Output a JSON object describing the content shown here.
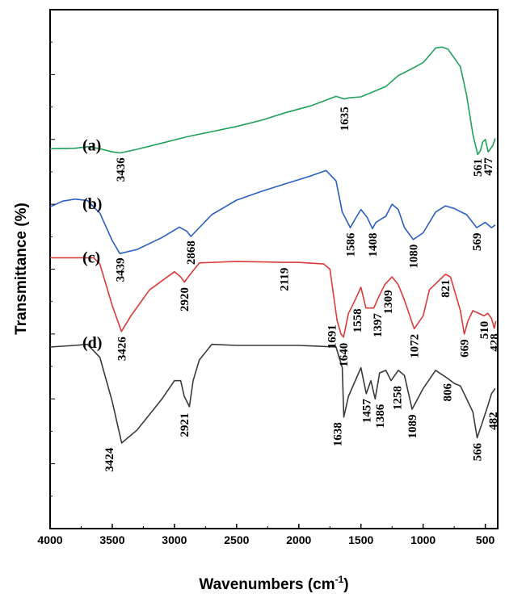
{
  "chart_data": {
    "type": "line",
    "title": "",
    "xlabel": "Wavenumbers (cm",
    "xlabel_sup": "-1",
    "xlabel_close": ")",
    "ylabel": "Transmittance (%)",
    "xlim": [
      4000,
      400
    ],
    "x_reversed": true,
    "x_ticks": [
      "4000",
      "3500",
      "3000",
      "2500",
      "2000",
      "1500",
      "1000",
      "500"
    ],
    "ylim": [
      0,
      100
    ],
    "grid": false,
    "series": [
      {
        "name": "(a)",
        "color": "#1fa15a",
        "points": [
          [
            4000,
            73.2
          ],
          [
            3800,
            73.3
          ],
          [
            3700,
            73.6
          ],
          [
            3600,
            73.2
          ],
          [
            3500,
            72.6
          ],
          [
            3436,
            72.4
          ],
          [
            3300,
            73.1
          ],
          [
            3100,
            74.3
          ],
          [
            2900,
            75.5
          ],
          [
            2700,
            76.5
          ],
          [
            2500,
            77.5
          ],
          [
            2300,
            78.7
          ],
          [
            2100,
            80.2
          ],
          [
            1900,
            81.5
          ],
          [
            1700,
            83.3
          ],
          [
            1635,
            82.8
          ],
          [
            1600,
            83.0
          ],
          [
            1500,
            83.2
          ],
          [
            1400,
            84.2
          ],
          [
            1300,
            85.2
          ],
          [
            1200,
            87.3
          ],
          [
            1100,
            88.5
          ],
          [
            1000,
            89.8
          ],
          [
            900,
            92.6
          ],
          [
            850,
            92.8
          ],
          [
            800,
            92.4
          ],
          [
            700,
            89.0
          ],
          [
            650,
            83.5
          ],
          [
            600,
            76.0
          ],
          [
            561,
            72.1
          ],
          [
            540,
            72.8
          ],
          [
            520,
            74.5
          ],
          [
            500,
            75.0
          ],
          [
            477,
            72.6
          ],
          [
            440,
            73.8
          ],
          [
            420,
            75.2
          ]
        ]
      },
      {
        "name": "(b)",
        "color": "#2a5fc1",
        "points": [
          [
            4000,
            62.0
          ],
          [
            3900,
            63.1
          ],
          [
            3800,
            63.5
          ],
          [
            3700,
            63.2
          ],
          [
            3600,
            60.8
          ],
          [
            3500,
            55.5
          ],
          [
            3439,
            53.0
          ],
          [
            3300,
            53.8
          ],
          [
            3100,
            56.1
          ],
          [
            2960,
            58.1
          ],
          [
            2900,
            57.3
          ],
          [
            2868,
            56.3
          ],
          [
            2700,
            60.5
          ],
          [
            2500,
            63.3
          ],
          [
            2300,
            65.0
          ],
          [
            2100,
            66.5
          ],
          [
            1900,
            68.0
          ],
          [
            1780,
            69.0
          ],
          [
            1700,
            67.0
          ],
          [
            1650,
            61.0
          ],
          [
            1586,
            58.0
          ],
          [
            1550,
            59.5
          ],
          [
            1500,
            61.5
          ],
          [
            1450,
            60.0
          ],
          [
            1408,
            57.8
          ],
          [
            1380,
            59.0
          ],
          [
            1300,
            60.2
          ],
          [
            1250,
            62.5
          ],
          [
            1200,
            61.5
          ],
          [
            1150,
            58.0
          ],
          [
            1080,
            55.7
          ],
          [
            1000,
            57.0
          ],
          [
            900,
            61.0
          ],
          [
            820,
            62.2
          ],
          [
            750,
            61.7
          ],
          [
            650,
            60.5
          ],
          [
            569,
            58.0
          ],
          [
            500,
            59.0
          ],
          [
            450,
            58.0
          ],
          [
            420,
            58.5
          ]
        ]
      },
      {
        "name": "(c)",
        "color": "#d93a3a",
        "points": [
          [
            4000,
            52.2
          ],
          [
            3700,
            52.2
          ],
          [
            3650,
            52.2
          ],
          [
            3600,
            51.0
          ],
          [
            3500,
            43.0
          ],
          [
            3426,
            38.0
          ],
          [
            3350,
            41.0
          ],
          [
            3200,
            46.0
          ],
          [
            3000,
            49.5
          ],
          [
            2950,
            48.5
          ],
          [
            2920,
            47.5
          ],
          [
            2880,
            48.8
          ],
          [
            2800,
            51.2
          ],
          [
            2500,
            51.5
          ],
          [
            2119,
            51.3
          ],
          [
            2000,
            51.3
          ],
          [
            1800,
            51.0
          ],
          [
            1750,
            50.0
          ],
          [
            1691,
            40.0
          ],
          [
            1660,
            37.5
          ],
          [
            1640,
            36.9
          ],
          [
            1600,
            41.5
          ],
          [
            1558,
            43.5
          ],
          [
            1500,
            46.5
          ],
          [
            1460,
            42.5
          ],
          [
            1397,
            42.5
          ],
          [
            1350,
            45.0
          ],
          [
            1309,
            47.0
          ],
          [
            1250,
            48.5
          ],
          [
            1200,
            47.0
          ],
          [
            1150,
            44.0
          ],
          [
            1100,
            40.5
          ],
          [
            1072,
            38.5
          ],
          [
            1000,
            41.0
          ],
          [
            950,
            46.0
          ],
          [
            821,
            49.0
          ],
          [
            780,
            48.5
          ],
          [
            700,
            42.0
          ],
          [
            669,
            37.5
          ],
          [
            640,
            40.0
          ],
          [
            600,
            42.0
          ],
          [
            510,
            41.0
          ],
          [
            480,
            41.5
          ],
          [
            450,
            40.5
          ],
          [
            428,
            38.6
          ],
          [
            415,
            40.0
          ]
        ]
      },
      {
        "name": "(d)",
        "color": "#3a3a3a",
        "points": [
          [
            4000,
            35.0
          ],
          [
            3800,
            35.3
          ],
          [
            3700,
            35.5
          ],
          [
            3600,
            33.0
          ],
          [
            3500,
            24.5
          ],
          [
            3424,
            16.5
          ],
          [
            3300,
            19.0
          ],
          [
            3100,
            25.0
          ],
          [
            3000,
            28.5
          ],
          [
            2950,
            28.5
          ],
          [
            2921,
            25.5
          ],
          [
            2880,
            23.5
          ],
          [
            2850,
            28.5
          ],
          [
            2800,
            32.5
          ],
          [
            2700,
            35.5
          ],
          [
            2500,
            35.3
          ],
          [
            2000,
            35.3
          ],
          [
            1700,
            35.0
          ],
          [
            1650,
            31.0
          ],
          [
            1638,
            21.5
          ],
          [
            1600,
            25.5
          ],
          [
            1500,
            31.0
          ],
          [
            1457,
            26.0
          ],
          [
            1420,
            28.5
          ],
          [
            1386,
            25.0
          ],
          [
            1350,
            30.0
          ],
          [
            1300,
            30.5
          ],
          [
            1258,
            28.5
          ],
          [
            1200,
            30.5
          ],
          [
            1150,
            29.5
          ],
          [
            1089,
            23.0
          ],
          [
            1000,
            27.0
          ],
          [
            900,
            30.5
          ],
          [
            806,
            29.0
          ],
          [
            750,
            28.0
          ],
          [
            700,
            27.5
          ],
          [
            600,
            22.5
          ],
          [
            566,
            17.5
          ],
          [
            530,
            20.0
          ],
          [
            482,
            23.5
          ],
          [
            450,
            26.0
          ],
          [
            420,
            27.0
          ]
        ]
      }
    ],
    "annotations": [
      {
        "text": "(a)",
        "kind": "panel",
        "x": 3740,
        "y": 73.8
      },
      {
        "text": "(b)",
        "kind": "panel",
        "x": 3740,
        "y": 62.5
      },
      {
        "text": "(c)",
        "kind": "panel",
        "x": 3740,
        "y": 52.2
      },
      {
        "text": "(d)",
        "kind": "panel",
        "x": 3740,
        "y": 35.8
      },
      {
        "text": "3436",
        "kind": "peak",
        "x": 3436,
        "y": 71.5
      },
      {
        "text": "1635",
        "kind": "peak",
        "x": 1635,
        "y": 81.3
      },
      {
        "text": "561",
        "kind": "peak",
        "x": 561,
        "y": 71.3
      },
      {
        "text": "477",
        "kind": "peak",
        "x": 477,
        "y": 71.5
      },
      {
        "text": "3439",
        "kind": "peak",
        "x": 3439,
        "y": 52.2
      },
      {
        "text": "2868",
        "kind": "peak",
        "x": 2868,
        "y": 55.5
      },
      {
        "text": "1586",
        "kind": "peak",
        "x": 1586,
        "y": 57.0
      },
      {
        "text": "1408",
        "kind": "peak",
        "x": 1408,
        "y": 57.0
      },
      {
        "text": "1080",
        "kind": "peak",
        "x": 1080,
        "y": 54.8
      },
      {
        "text": "569",
        "kind": "peak",
        "x": 569,
        "y": 57.0
      },
      {
        "text": "3426",
        "kind": "peak",
        "x": 3426,
        "y": 37.0
      },
      {
        "text": "2920",
        "kind": "peak",
        "x": 2920,
        "y": 46.5
      },
      {
        "text": "2119",
        "kind": "peak",
        "x": 2119,
        "y": 50.3
      },
      {
        "text": "1691",
        "kind": "peak",
        "x": 1735,
        "y": 39.3
      },
      {
        "text": "1640",
        "kind": "peak",
        "x": 1640,
        "y": 35.8
      },
      {
        "text": "1558",
        "kind": "peak",
        "x": 1530,
        "y": 42.4
      },
      {
        "text": "1397",
        "kind": "peak",
        "x": 1368,
        "y": 41.5
      },
      {
        "text": "1309",
        "kind": "peak",
        "x": 1285,
        "y": 46.0
      },
      {
        "text": "1072",
        "kind": "peak",
        "x": 1072,
        "y": 37.5
      },
      {
        "text": "821",
        "kind": "peak",
        "x": 821,
        "y": 48.0
      },
      {
        "text": "669",
        "kind": "peak",
        "x": 669,
        "y": 36.5
      },
      {
        "text": "510",
        "kind": "peak",
        "x": 510,
        "y": 40.0
      },
      {
        "text": "428",
        "kind": "peak",
        "x": 428,
        "y": 37.6
      },
      {
        "text": "3424",
        "kind": "peak",
        "x": 3524,
        "y": 15.6
      },
      {
        "text": "2921",
        "kind": "peak",
        "x": 2921,
        "y": 22.3
      },
      {
        "text": "1638",
        "kind": "peak",
        "x": 1690,
        "y": 20.5
      },
      {
        "text": "1457",
        "kind": "peak",
        "x": 1457,
        "y": 25.0
      },
      {
        "text": "1386",
        "kind": "peak",
        "x": 1350,
        "y": 24.0
      },
      {
        "text": "1258",
        "kind": "peak",
        "x": 1210,
        "y": 27.5
      },
      {
        "text": "1089",
        "kind": "peak",
        "x": 1089,
        "y": 22.0
      },
      {
        "text": "806",
        "kind": "peak",
        "x": 806,
        "y": 28.0
      },
      {
        "text": "566",
        "kind": "peak",
        "x": 566,
        "y": 16.5
      },
      {
        "text": "482",
        "kind": "peak",
        "x": 440,
        "y": 22.5
      }
    ]
  }
}
